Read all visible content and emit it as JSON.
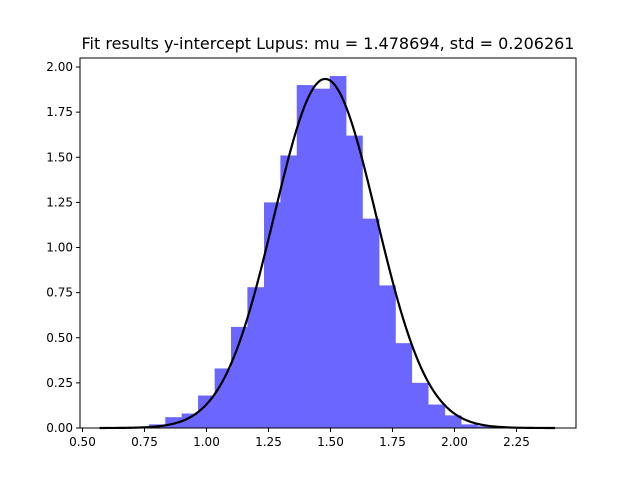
{
  "chart_data": {
    "type": "bar",
    "title": "Fit results y-intercept Lupus: mu = 1.478694,  std = 0.206261",
    "xlabel": "",
    "ylabel": "",
    "xlim": [
      0.49,
      2.49
    ],
    "ylim": [
      0,
      2.05
    ],
    "grid": false,
    "xticks": [
      "0.50",
      "0.75",
      "1.00",
      "1.25",
      "1.50",
      "1.75",
      "2.00",
      "2.25"
    ],
    "yticks": [
      "0.00",
      "0.25",
      "0.50",
      "0.75",
      "1.00",
      "1.25",
      "1.50",
      "1.75",
      "2.00"
    ],
    "histogram": {
      "color": "#6a66ff",
      "bin_width": 0.0663,
      "bin_edges": [
        0.569,
        0.635,
        0.701,
        0.768,
        0.834,
        0.9,
        0.966,
        1.033,
        1.099,
        1.165,
        1.232,
        1.298,
        1.364,
        1.43,
        1.497,
        1.563,
        1.629,
        1.696,
        1.762,
        1.828,
        1.894,
        1.961,
        2.027,
        2.093,
        2.16,
        2.226,
        2.292,
        2.358,
        2.405
      ],
      "values": [
        0.0,
        0.0,
        0.0,
        0.02,
        0.06,
        0.08,
        0.18,
        0.33,
        0.56,
        0.78,
        1.25,
        1.51,
        1.9,
        1.88,
        1.95,
        1.62,
        1.16,
        0.79,
        0.47,
        0.25,
        0.13,
        0.07,
        0.02,
        0.01,
        0.0,
        0.0,
        0.0,
        0.0
      ]
    },
    "fit_curve": {
      "type": "normal_pdf",
      "mu": 1.478694,
      "std": 0.206261,
      "x_range": [
        0.569,
        2.405
      ],
      "color": "#000000"
    }
  }
}
